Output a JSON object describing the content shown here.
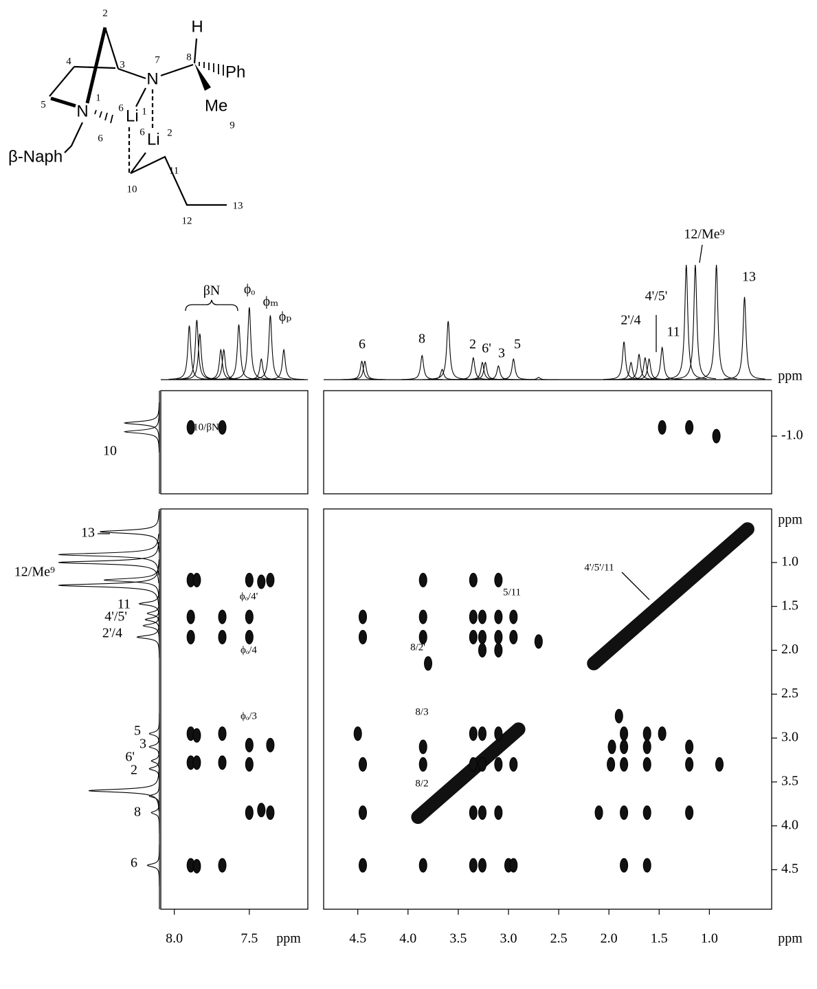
{
  "molecule": {
    "labels": [
      "2",
      "3",
      "4",
      "5",
      "N",
      "1",
      "7",
      "N",
      "8",
      "H",
      "Ph",
      "Me",
      "9",
      "6",
      "Li",
      "1",
      "6",
      "Li",
      "2",
      "β-Naph",
      "6",
      "10",
      "11",
      "12",
      "13"
    ]
  },
  "chart_data": [
    {
      "type": "spectrum",
      "xlim": [
        8.09,
        7.11
      ],
      "ylim": [
        0,
        100
      ],
      "x": [
        7.9,
        7.85,
        7.83,
        7.69,
        7.67,
        7.57,
        7.5,
        7.42,
        7.36,
        7.27
      ],
      "values": [
        47,
        52,
        40,
        26,
        26,
        48,
        63,
        18,
        56,
        26
      ],
      "annotations": [
        "βN",
        "ϕₒ",
        "ϕₘ",
        "ϕₚ"
      ]
    },
    {
      "type": "spectrum",
      "xlim": [
        4.84,
        0.38
      ],
      "ylim": [
        0,
        100
      ],
      "x": [
        4.46,
        4.43,
        3.86,
        3.66,
        3.6,
        3.35,
        3.26,
        3.23,
        3.1,
        2.95,
        2.7,
        1.85,
        1.78,
        1.7,
        1.64,
        1.6,
        1.47,
        1.23,
        1.14,
        0.93,
        0.65
      ],
      "values": [
        16,
        16,
        21,
        9,
        51,
        19,
        15,
        15,
        12,
        18,
        2,
        33,
        15,
        22,
        19,
        18,
        28,
        100,
        100,
        100,
        72
      ],
      "annotations": [
        "6",
        "8",
        "2",
        "6'",
        "3",
        "5",
        "2'/4",
        "4'/5'",
        "11",
        "12/Me⁹",
        "13"
      ],
      "xlabel": "ppm"
    },
    {
      "type": "spectrum",
      "xlim": [
        0.39,
        4.95
      ],
      "ylim": [
        0,
        100
      ],
      "x": [
        0.65,
        0.91,
        1.0,
        1.2,
        1.26,
        1.47,
        1.58,
        1.65,
        1.72,
        1.85,
        2.95,
        3.1,
        3.26,
        3.35,
        3.6,
        3.66,
        3.85,
        4.45
      ],
      "values": [
        59,
        100,
        100,
        55,
        100,
        20,
        12,
        14,
        16,
        22,
        10,
        10,
        8,
        10,
        70,
        10,
        8,
        12
      ],
      "annotations": [
        "13",
        "12/Me⁹",
        "11",
        "4'/5'",
        "2'/4",
        "5",
        "3",
        "6'",
        "2",
        "8",
        "6"
      ]
    },
    {
      "type": "spectrum",
      "xlim": [
        -1.52,
        -0.34
      ],
      "ylim": [
        0,
        100
      ],
      "x": [
        -1.05,
        -1.15
      ],
      "values": [
        45,
        45
      ],
      "annotations": [
        "10"
      ]
    },
    {
      "type": "contour",
      "xlim": [
        8.09,
        7.11
      ],
      "ylim": [
        -1.52,
        -0.34
      ],
      "x": [
        7.89,
        7.68
      ],
      "values": [
        -1.1,
        -1.1
      ],
      "annotations": [
        "10/βN"
      ]
    },
    {
      "type": "contour",
      "xlim": [
        4.84,
        0.38
      ],
      "ylim": [
        -1.52,
        -0.34
      ],
      "x": [
        1.47,
        1.2,
        0.93
      ],
      "values": [
        -1.1,
        -1.1,
        -1.0
      ],
      "yticks": [
        {
          "value": -1,
          "label": "-1.0"
        }
      ]
    },
    {
      "type": "contour",
      "xlim": [
        8.09,
        7.11
      ],
      "ylim": [
        0.39,
        4.95
      ],
      "x": [
        7.89,
        7.85,
        7.5,
        7.42,
        7.36,
        7.89,
        7.68,
        7.5,
        7.89,
        7.68,
        7.5,
        7.89,
        7.85,
        7.68,
        7.5,
        7.36,
        7.89,
        7.85,
        7.68,
        7.5,
        7.5,
        7.42,
        7.36,
        7.89,
        7.85,
        7.68
      ],
      "values": [
        1.2,
        1.2,
        1.2,
        1.22,
        1.2,
        1.62,
        1.62,
        1.62,
        1.85,
        1.85,
        1.85,
        2.95,
        2.97,
        2.95,
        3.08,
        3.08,
        3.28,
        3.28,
        3.28,
        3.3,
        3.85,
        3.82,
        3.85,
        4.45,
        4.46,
        4.45
      ],
      "xticks": [
        {
          "value": 8,
          "label": "8.0"
        },
        7.5
      ],
      "xlabel": "ppm",
      "annotations": [
        "ϕₒ/4'",
        "ϕₒ/4",
        "ϕₒ/3"
      ]
    },
    {
      "type": "contour",
      "xlim": [
        4.84,
        0.38
      ],
      "ylim": [
        0.39,
        4.95
      ],
      "x": [
        3.85,
        3.35,
        3.1,
        4.45,
        3.85,
        3.35,
        3.26,
        3.1,
        2.95,
        4.45,
        3.85,
        3.35,
        3.26,
        3.1,
        2.95,
        2.7,
        3.8,
        3.26,
        3.1,
        4.5,
        3.35,
        3.26,
        3.1,
        1.85,
        1.62,
        1.47,
        1.9,
        3.85,
        1.85,
        1.62,
        1.2,
        1.97,
        4.45,
        3.85,
        3.35,
        3.26,
        3.1,
        2.95,
        1.98,
        1.85,
        1.62,
        1.2,
        0.9,
        4.45,
        3.35,
        3.26,
        3.1,
        2.1,
        1.85,
        1.62,
        1.2,
        4.45,
        3.85,
        3.35,
        3.26,
        3.0,
        2.95,
        1.85,
        1.62
      ],
      "values": [
        1.2,
        1.2,
        1.2,
        1.62,
        1.62,
        1.62,
        1.62,
        1.62,
        1.62,
        1.85,
        1.85,
        1.85,
        1.85,
        1.85,
        1.85,
        1.9,
        2.15,
        2.0,
        2.0,
        2.95,
        2.95,
        2.95,
        2.95,
        2.95,
        2.95,
        2.95,
        2.75,
        3.1,
        3.1,
        3.1,
        3.1,
        3.1,
        3.3,
        3.3,
        3.3,
        3.3,
        3.3,
        3.3,
        3.3,
        3.3,
        3.3,
        3.3,
        3.3,
        3.85,
        3.85,
        3.85,
        3.85,
        3.85,
        3.85,
        3.85,
        3.85,
        4.45,
        4.45,
        4.45,
        4.45,
        4.45,
        4.45,
        4.45,
        4.45
      ],
      "diagonal": {
        "x": [
          3.9,
          2.9,
          null,
          2.15,
          0.62
        ],
        "values": [
          3.9,
          2.9,
          null,
          2.15,
          0.62
        ]
      },
      "xticks": [
        4.5,
        {
          "value": 4,
          "label": "4.0"
        },
        3.5,
        {
          "value": 3,
          "label": "3.0"
        },
        2.5,
        {
          "value": 2,
          "label": "2.0"
        },
        1.5,
        {
          "value": 1,
          "label": "1.0"
        }
      ],
      "yticks": [
        {
          "value": 1,
          "label": "1.0"
        },
        1.5,
        {
          "value": 2,
          "label": "2.0"
        },
        2.5,
        {
          "value": 3,
          "label": "3.0"
        },
        3.5,
        {
          "value": 4,
          "label": "4.0"
        },
        4.5
      ],
      "xlabel": "ppm",
      "ylabel": "ppm",
      "annotations": [
        "5/11",
        "8/2'",
        "8/3",
        "8/2",
        "4'/5'/11"
      ]
    }
  ]
}
